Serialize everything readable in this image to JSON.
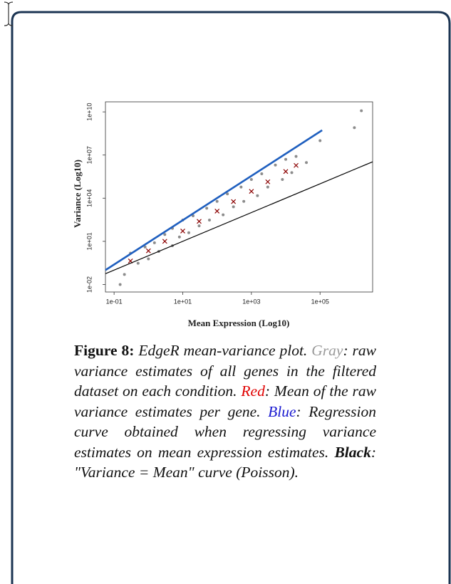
{
  "chart_data": {
    "type": "scatter",
    "xlabel": "Mean Expression (Log10)",
    "ylabel": "Variance (Log10)",
    "xscale": "log",
    "yscale": "log",
    "xlim": [
      0.056,
      3400000
    ],
    "ylim": [
      0.003,
      50000000000
    ],
    "xticks": [
      {
        "value": 0.1,
        "label": "1e-01"
      },
      {
        "value": 10,
        "label": "1e+01"
      },
      {
        "value": 1000,
        "label": "1e+03"
      },
      {
        "value": 100000,
        "label": "1e+05"
      }
    ],
    "yticks": [
      {
        "value": 0.01,
        "label": "1e-02"
      },
      {
        "value": 10,
        "label": "1e+01"
      },
      {
        "value": 10000,
        "label": "1e+04"
      },
      {
        "value": 10000000,
        "label": "1e+07"
      },
      {
        "value": 10000000000,
        "label": "1e+10"
      }
    ],
    "series": [
      {
        "color": "#8c8c8c",
        "marker": "o",
        "x": [
          0.15,
          0.2,
          0.3,
          0.5,
          0.8,
          1,
          1.5,
          2,
          3,
          5,
          5,
          8,
          10,
          15,
          20,
          30,
          50,
          60,
          100,
          150,
          200,
          300,
          500,
          600,
          1000,
          1500,
          2000,
          3000,
          5000,
          8000,
          10000,
          15000,
          20000,
          40000,
          100000,
          1000000,
          1600000
        ],
        "values": [
          0.01,
          0.05,
          1.5,
          0.3,
          4,
          0.6,
          8,
          2,
          30,
          5,
          80,
          20,
          300,
          40,
          600,
          120,
          2000,
          300,
          6000,
          700,
          20000,
          2500,
          60000,
          6000,
          200000,
          15000,
          500000,
          60000,
          2000000,
          200000,
          5000000,
          600000,
          8000000,
          3000000,
          100000000,
          800000000,
          12000000000
        ]
      },
      {
        "color": "#8b0000",
        "marker": "x",
        "x": [
          0.3,
          1,
          3,
          10,
          30,
          100,
          300,
          1000,
          3000,
          10000,
          20000
        ],
        "values": [
          0.43,
          2.2,
          10,
          52,
          245,
          1260,
          5800,
          30000,
          138000,
          720000,
          1900000
        ]
      },
      {
        "color": "#1f5fbf",
        "marker": "line",
        "x": [
          0.056,
          115000
        ],
        "values": [
          0.1,
          530000000
        ]
      },
      {
        "color": "#000000",
        "marker": "line",
        "x": [
          0.056,
          3400000
        ],
        "values": [
          0.056,
          3400000
        ]
      }
    ]
  },
  "caption": {
    "label": "Figure 8:",
    "parts": [
      {
        "text": "EdgeR mean-variance plot.",
        "color": "#111111"
      },
      {
        "text": "Gray",
        "color": "#9a9a9a"
      },
      {
        "text": ": raw variance estimates of all genes in the filtered dataset on each condition.",
        "color": "#111111"
      },
      {
        "text": "Red",
        "color": "#e00000"
      },
      {
        "text": ": Mean of the raw variance estimates per gene.",
        "color": "#111111"
      },
      {
        "text": "Blue",
        "color": "#1a1ad0"
      },
      {
        "text": ": Regression curve obtained when regressing variance estimates on mean expression estimates.",
        "color": "#111111"
      },
      {
        "text": "Black",
        "color": "#111111",
        "bold": true
      },
      {
        "text": ": \"Variance = Mean\" curve (Poisson).",
        "color": "#111111"
      }
    ]
  }
}
